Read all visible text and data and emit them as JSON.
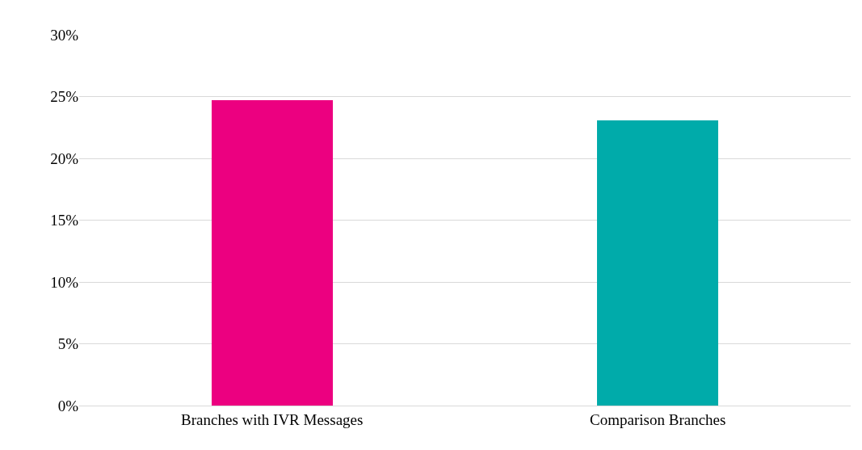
{
  "chart_data": {
    "type": "bar",
    "categories": [
      "Branches with IVR Messages",
      "Comparison Branches"
    ],
    "values": [
      24.7,
      23.1
    ],
    "colors": [
      "#ec0080",
      "#00abaa"
    ],
    "ylim": [
      0,
      30
    ],
    "yticks": [
      {
        "value": 0,
        "label": "0%"
      },
      {
        "value": 5,
        "label": "5%"
      },
      {
        "value": 10,
        "label": "10%"
      },
      {
        "value": 15,
        "label": "15%"
      },
      {
        "value": 20,
        "label": "20%"
      },
      {
        "value": 25,
        "label": "25%"
      },
      {
        "value": 30,
        "label": "30%"
      }
    ],
    "grid": "y"
  }
}
